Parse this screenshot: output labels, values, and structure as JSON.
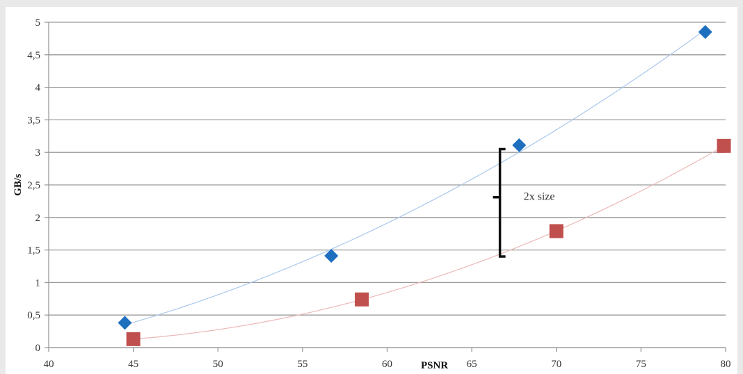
{
  "chart_data": {
    "type": "scatter",
    "title": "",
    "xlabel": "PSNR",
    "ylabel": "GB/s",
    "xlim": [
      40,
      80
    ],
    "ylim": [
      0,
      5
    ],
    "x_ticks": [
      40,
      45,
      50,
      55,
      60,
      65,
      70,
      75,
      80
    ],
    "y_ticks": [
      0,
      0.5,
      1,
      1.5,
      2,
      2.5,
      3,
      3.5,
      4,
      4.5,
      5
    ],
    "x_tick_labels": [
      "40",
      "45",
      "50",
      "55",
      "60",
      "65",
      "70",
      "75",
      "80"
    ],
    "y_tick_labels": [
      "0",
      "0,5",
      "1",
      "1,5",
      "2",
      "2,5",
      "3",
      "3,5",
      "4",
      "4,5",
      "5"
    ],
    "grid": "horizontal",
    "legend": "none",
    "series": [
      {
        "marker": "diamond",
        "color": "#1f6fbf",
        "trend_color": "#a9c8ec",
        "points": [
          {
            "x": 44.5,
            "y": 0.38
          },
          {
            "x": 56.7,
            "y": 1.41
          },
          {
            "x": 67.8,
            "y": 3.11
          },
          {
            "x": 78.8,
            "y": 4.85
          }
        ],
        "trendline": "polynomial"
      },
      {
        "marker": "square",
        "color": "#c0504d",
        "trend_color": "#ecb8b6",
        "points": [
          {
            "x": 45.0,
            "y": 0.13
          },
          {
            "x": 58.5,
            "y": 0.74
          },
          {
            "x": 70.0,
            "y": 1.79
          },
          {
            "x": 79.9,
            "y": 3.1
          }
        ],
        "trendline": "polynomial"
      }
    ],
    "annotations": [
      {
        "text": "2x size",
        "bracket_x": 66.5,
        "bracket_y_from": 1.4,
        "bracket_y_to": 3.05
      }
    ]
  }
}
